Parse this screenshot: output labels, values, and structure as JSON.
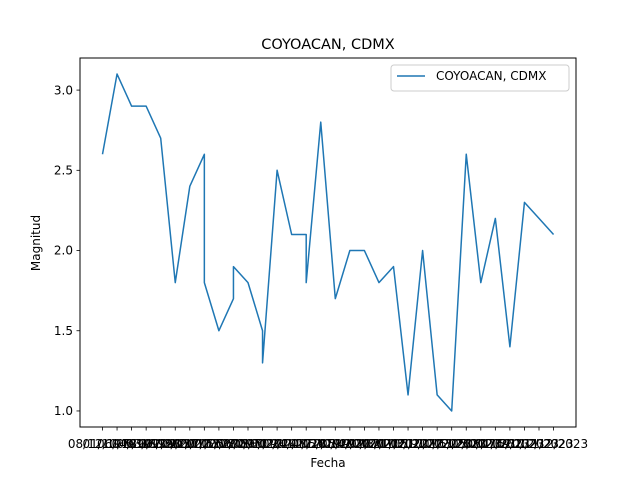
{
  "chart_data": {
    "type": "line",
    "title": "COYOACAN, CDMX",
    "xlabel": "Fecha",
    "ylabel": "Magnitud",
    "ylim": [
      0.9,
      3.2
    ],
    "yticks": [
      "1.0",
      "1.5",
      "2.0",
      "2.5",
      "3.0"
    ],
    "ytick_values": [
      1.0,
      1.5,
      2.0,
      2.5,
      3.0
    ],
    "grid": false,
    "legend_position": "top-right",
    "series": [
      {
        "name": "COYOACAN, CDMX",
        "color": "#1f77b4",
        "x": [
          0,
          1,
          2,
          3,
          4,
          5,
          6,
          7,
          7,
          8,
          9,
          9,
          10,
          11,
          11,
          12,
          13,
          14,
          14,
          15,
          16,
          17,
          18,
          19,
          20,
          21,
          22,
          23,
          24,
          25,
          26,
          27,
          28,
          29,
          30,
          31
        ],
        "values": [
          2.6,
          3.1,
          2.9,
          2.9,
          2.7,
          1.8,
          2.4,
          2.6,
          1.8,
          1.5,
          1.7,
          1.9,
          1.8,
          1.5,
          1.3,
          2.5,
          2.1,
          2.1,
          1.8,
          2.8,
          1.7,
          2.0,
          2.0,
          1.8,
          1.9,
          1.1,
          2.0,
          1.1,
          1.0,
          2.6,
          1.8,
          2.2,
          1.4,
          2.3,
          2.2,
          2.1
        ]
      }
    ],
    "x_tick_labels": [
      "08/12/1978",
      "01/10/1990",
      "06/05/1993",
      "04/10/1998",
      "03/02/2000",
      "18/09/2002",
      "03/03/2005",
      "22/01/2007",
      "17/03/2009",
      "05/06/2011",
      "12/08/2012",
      "20/05/2014",
      "18/09/2017",
      "02/02/2018",
      "24/08/2019",
      "11/12/2019",
      "05/05/2020",
      "30/09/2020",
      "14/02/2021",
      "20/07/2021",
      "03/01/2022",
      "21/05/2022",
      "03/10/2022",
      "19/01/2023",
      "10/03/2023",
      "05/05/2023",
      "12/06/2023",
      "30/07/2023",
      "01/09/2023",
      "15/10/2023",
      "20/11/2023",
      "12/12/2023"
    ],
    "last_tick_visible": "/2023"
  }
}
